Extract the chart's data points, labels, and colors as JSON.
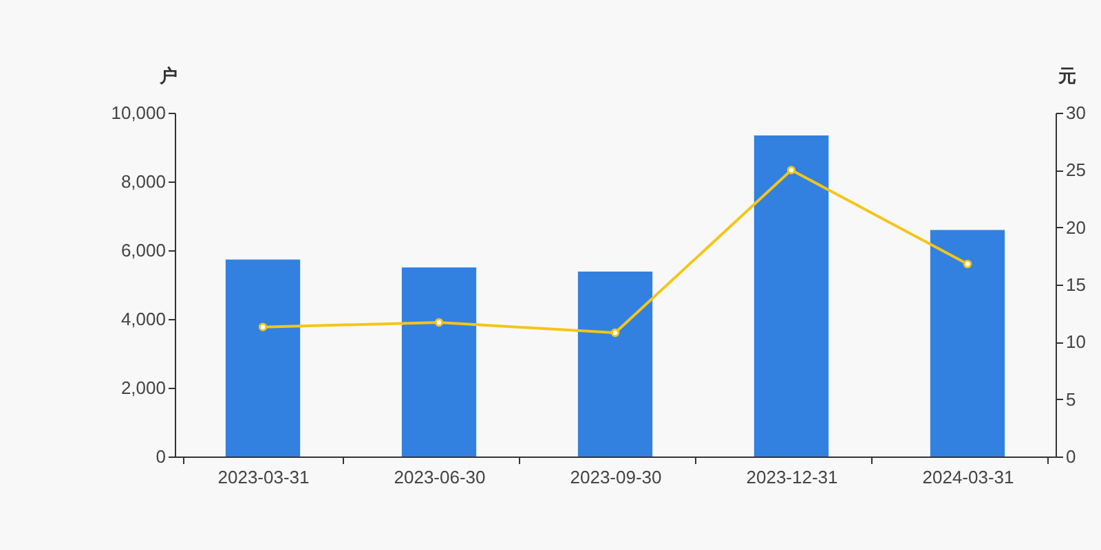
{
  "chart_data": {
    "type": "bar",
    "ylabel": "户",
    "y2label": "元",
    "categories": [
      "2023-03-31",
      "2023-06-30",
      "2023-09-30",
      "2023-12-31",
      "2024-03-31"
    ],
    "series": [
      {
        "color": "#3281e1",
        "values": [
          5730,
          5500,
          5380,
          9340,
          6590
        ]
      },
      {
        "type": "line",
        "axis": "y2",
        "color": "#f5c518",
        "values": [
          11.3,
          11.7,
          10.8,
          25.0,
          16.8
        ],
        "marker": "circle"
      }
    ],
    "ylim": [
      0,
      10000
    ],
    "yticks": [
      0,
      {
        "value": 2000,
        "label": "2,000"
      },
      {
        "value": 4000,
        "label": "4,000"
      },
      {
        "value": 6000,
        "label": "6,000"
      },
      {
        "value": 8000,
        "label": "8,000"
      },
      {
        "value": 10000,
        "label": "10,000"
      }
    ],
    "y2lim": [
      0,
      30
    ],
    "y2ticks": [
      0,
      5,
      10,
      15,
      20,
      25,
      30
    ],
    "grid": false
  }
}
